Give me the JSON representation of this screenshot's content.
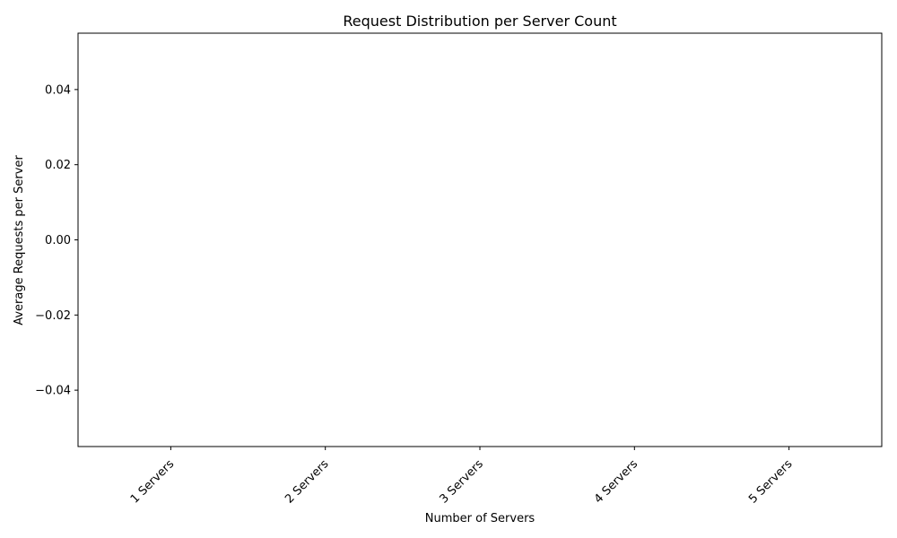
{
  "chart_data": {
    "type": "bar",
    "title": "Request Distribution per Server Count",
    "xlabel": "Number of Servers",
    "ylabel": "Average Requests per Server",
    "categories": [
      "1 Servers",
      "2 Servers",
      "3 Servers",
      "4 Servers",
      "5 Servers"
    ],
    "values": [
      0,
      0,
      0,
      0,
      0
    ],
    "ylim": [
      -0.055,
      0.055
    ],
    "yticks": [
      -0.04,
      -0.02,
      0.0,
      0.02,
      0.04
    ],
    "ytick_labels": [
      "−0.04",
      "−0.02",
      "0.00",
      "0.02",
      "0.04"
    ],
    "grid": false,
    "xtick_rotation": 45
  }
}
